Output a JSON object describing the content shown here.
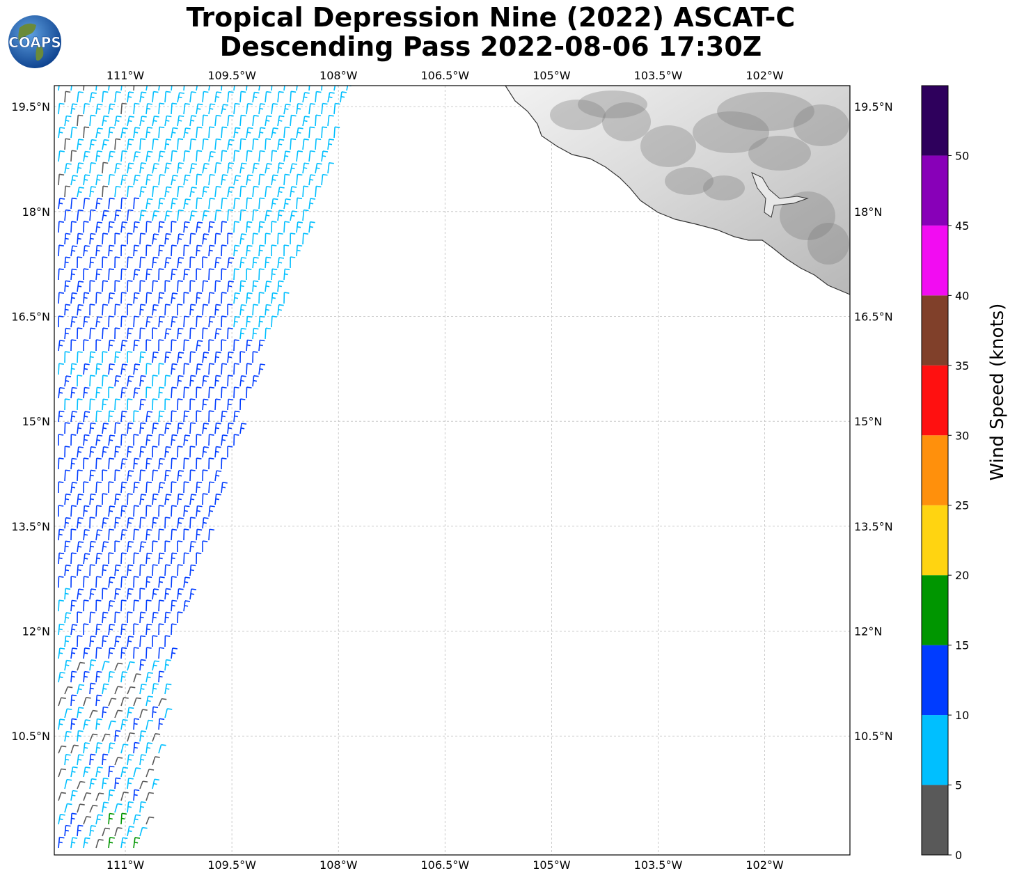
{
  "title": {
    "line1": "Tropical Depression Nine (2022) ASCAT-C",
    "line2": "Descending Pass 2022-08-06 17:30Z"
  },
  "logo": {
    "text": "COAPS",
    "icon": "globe-logo-icon"
  },
  "map": {
    "lon_range": [
      -112.0,
      -100.8
    ],
    "lat_range": [
      8.8,
      19.8
    ],
    "top_lon_labels": [
      "111°W",
      "109.5°W",
      "108°W",
      "106.5°W",
      "105°W",
      "103.5°W",
      "102°W"
    ],
    "bottom_lon_labels": [
      "111°W",
      "109.5°W",
      "108°W",
      "106.5°W",
      "105°W",
      "103.5°W",
      "102°W"
    ],
    "left_lat_labels": [
      "19.5°N",
      "18°N",
      "16.5°N",
      "15°N",
      "13.5°N",
      "12°N",
      "10.5°N"
    ],
    "right_lat_labels": [
      "19.5°N",
      "18°N",
      "16.5°N",
      "15°N",
      "13.5°N",
      "12°N",
      "10.5°N"
    ],
    "grid": true,
    "land": "terrain shaded in grayscale (Mexico coast)"
  },
  "colorbar": {
    "label": "Wind Speed (knots)",
    "tick_labels": [
      "0",
      "5",
      "10",
      "15",
      "20",
      "25",
      "30",
      "35",
      "40",
      "45",
      "50"
    ],
    "bins": [
      {
        "min": 0,
        "max": 5,
        "color": "#595959"
      },
      {
        "min": 5,
        "max": 10,
        "color": "#00bfff"
      },
      {
        "min": 10,
        "max": 15,
        "color": "#003cff"
      },
      {
        "min": 15,
        "max": 20,
        "color": "#009600"
      },
      {
        "min": 20,
        "max": 25,
        "color": "#ffd411"
      },
      {
        "min": 25,
        "max": 30,
        "color": "#ff900c"
      },
      {
        "min": 30,
        "max": 35,
        "color": "#ff1010"
      },
      {
        "min": 35,
        "max": 40,
        "color": "#80402a"
      },
      {
        "min": 40,
        "max": 45,
        "color": "#f20cf2"
      },
      {
        "min": 45,
        "max": 50,
        "color": "#8800b8"
      },
      {
        "min": 50,
        "max": 55,
        "color": "#2e005c"
      }
    ]
  },
  "barb_colors": {
    "calm": "#595959",
    "light": "#00bfff",
    "moderate": "#003cff",
    "fresh": "#009600"
  }
}
